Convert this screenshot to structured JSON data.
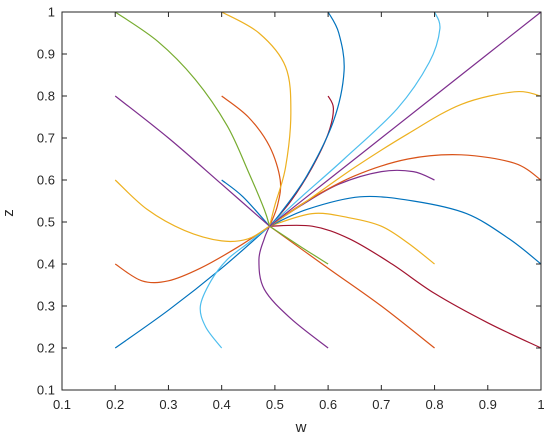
{
  "chart_data": {
    "type": "line",
    "title": "",
    "xlabel": "w",
    "ylabel": "z",
    "xlim": [
      0.1,
      1
    ],
    "ylim": [
      0.1,
      1
    ],
    "x_ticks": [
      "0.1",
      "0.2",
      "0.3",
      "0.4",
      "0.5",
      "0.6",
      "0.7",
      "0.8",
      "0.9",
      "1"
    ],
    "y_ticks": [
      "0.1",
      "0.2",
      "0.3",
      "0.4",
      "0.5",
      "0.6",
      "0.7",
      "0.8",
      "0.9",
      "1"
    ],
    "grid": false,
    "legend": "none",
    "equilibrium": [
      0.49,
      0.49
    ],
    "series": [
      {
        "color": "#0072BD",
        "points": [
          [
            0.2,
            0.2
          ],
          [
            0.3,
            0.29
          ],
          [
            0.4,
            0.39
          ],
          [
            0.49,
            0.49
          ]
        ]
      },
      {
        "color": "#4DBEEE",
        "points": [
          [
            0.4,
            0.2
          ],
          [
            0.37,
            0.25
          ],
          [
            0.36,
            0.3
          ],
          [
            0.38,
            0.36
          ],
          [
            0.41,
            0.41
          ],
          [
            0.45,
            0.45
          ],
          [
            0.49,
            0.49
          ]
        ]
      },
      {
        "color": "#7E2F8E",
        "points": [
          [
            0.6,
            0.2
          ],
          [
            0.53,
            0.27
          ],
          [
            0.48,
            0.34
          ],
          [
            0.47,
            0.41
          ],
          [
            0.48,
            0.46
          ],
          [
            0.49,
            0.49
          ]
        ]
      },
      {
        "color": "#D95319",
        "points": [
          [
            0.8,
            0.2
          ],
          [
            0.7,
            0.3
          ],
          [
            0.6,
            0.39
          ],
          [
            0.49,
            0.49
          ]
        ]
      },
      {
        "color": "#A2142F",
        "points": [
          [
            1.0,
            0.2
          ],
          [
            0.9,
            0.26
          ],
          [
            0.8,
            0.33
          ],
          [
            0.72,
            0.4
          ],
          [
            0.64,
            0.46
          ],
          [
            0.57,
            0.49
          ],
          [
            0.49,
            0.49
          ]
        ]
      },
      {
        "color": "#D95319",
        "points": [
          [
            0.2,
            0.4
          ],
          [
            0.25,
            0.36
          ],
          [
            0.3,
            0.36
          ],
          [
            0.36,
            0.39
          ],
          [
            0.43,
            0.44
          ],
          [
            0.49,
            0.49
          ]
        ]
      },
      {
        "color": "#EDB120",
        "points": [
          [
            0.8,
            0.4
          ],
          [
            0.75,
            0.45
          ],
          [
            0.7,
            0.49
          ],
          [
            0.64,
            0.51
          ],
          [
            0.57,
            0.52
          ],
          [
            0.49,
            0.49
          ]
        ]
      },
      {
        "color": "#0072BD",
        "points": [
          [
            1.0,
            0.4
          ],
          [
            0.94,
            0.46
          ],
          [
            0.86,
            0.52
          ],
          [
            0.76,
            0.55
          ],
          [
            0.66,
            0.56
          ],
          [
            0.56,
            0.53
          ],
          [
            0.49,
            0.49
          ]
        ]
      },
      {
        "color": "#77AC30",
        "points": [
          [
            0.6,
            0.4
          ],
          [
            0.55,
            0.44
          ],
          [
            0.49,
            0.49
          ]
        ]
      },
      {
        "color": "#EDB120",
        "points": [
          [
            0.2,
            0.6
          ],
          [
            0.26,
            0.53
          ],
          [
            0.33,
            0.48
          ],
          [
            0.4,
            0.455
          ],
          [
            0.45,
            0.46
          ],
          [
            0.49,
            0.49
          ]
        ]
      },
      {
        "color": "#0072BD",
        "points": [
          [
            0.4,
            0.6
          ],
          [
            0.44,
            0.56
          ],
          [
            0.49,
            0.49
          ]
        ]
      },
      {
        "color": "#7E2F8E",
        "points": [
          [
            0.8,
            0.6
          ],
          [
            0.76,
            0.62
          ],
          [
            0.7,
            0.62
          ],
          [
            0.62,
            0.59
          ],
          [
            0.55,
            0.54
          ],
          [
            0.49,
            0.49
          ]
        ]
      },
      {
        "color": "#D95319",
        "points": [
          [
            1.0,
            0.6
          ],
          [
            0.95,
            0.64
          ],
          [
            0.85,
            0.66
          ],
          [
            0.75,
            0.65
          ],
          [
            0.65,
            0.61
          ],
          [
            0.56,
            0.55
          ],
          [
            0.49,
            0.49
          ]
        ]
      },
      {
        "color": "#7E2F8E",
        "points": [
          [
            0.2,
            0.8
          ],
          [
            0.3,
            0.7
          ],
          [
            0.4,
            0.59
          ],
          [
            0.49,
            0.49
          ]
        ]
      },
      {
        "color": "#D95319",
        "points": [
          [
            0.4,
            0.8
          ],
          [
            0.45,
            0.75
          ],
          [
            0.49,
            0.68
          ],
          [
            0.51,
            0.6
          ],
          [
            0.505,
            0.54
          ],
          [
            0.49,
            0.49
          ]
        ]
      },
      {
        "color": "#A2142F",
        "points": [
          [
            0.6,
            0.8
          ],
          [
            0.61,
            0.77
          ],
          [
            0.6,
            0.71
          ],
          [
            0.57,
            0.63
          ],
          [
            0.53,
            0.55
          ],
          [
            0.49,
            0.49
          ]
        ]
      },
      {
        "color": "#EDB120",
        "points": [
          [
            1.0,
            0.8
          ],
          [
            0.95,
            0.81
          ],
          [
            0.85,
            0.78
          ],
          [
            0.75,
            0.71
          ],
          [
            0.65,
            0.63
          ],
          [
            0.56,
            0.55
          ],
          [
            0.49,
            0.49
          ]
        ]
      },
      {
        "color": "#77AC30",
        "points": [
          [
            0.2,
            1.0
          ],
          [
            0.28,
            0.93
          ],
          [
            0.35,
            0.84
          ],
          [
            0.41,
            0.73
          ],
          [
            0.45,
            0.62
          ],
          [
            0.48,
            0.53
          ],
          [
            0.49,
            0.49
          ]
        ]
      },
      {
        "color": "#EDB120",
        "points": [
          [
            0.4,
            1.0
          ],
          [
            0.47,
            0.95
          ],
          [
            0.52,
            0.87
          ],
          [
            0.53,
            0.76
          ],
          [
            0.52,
            0.63
          ],
          [
            0.5,
            0.54
          ],
          [
            0.49,
            0.49
          ]
        ]
      },
      {
        "color": "#0072BD",
        "points": [
          [
            0.6,
            1.0
          ],
          [
            0.62,
            0.95
          ],
          [
            0.63,
            0.86
          ],
          [
            0.61,
            0.74
          ],
          [
            0.56,
            0.61
          ],
          [
            0.51,
            0.52
          ],
          [
            0.49,
            0.49
          ]
        ]
      },
      {
        "color": "#4DBEEE",
        "points": [
          [
            0.8,
            1.0
          ],
          [
            0.81,
            0.96
          ],
          [
            0.79,
            0.88
          ],
          [
            0.73,
            0.77
          ],
          [
            0.63,
            0.65
          ],
          [
            0.55,
            0.56
          ],
          [
            0.49,
            0.49
          ]
        ]
      },
      {
        "color": "#7E2F8E",
        "points": [
          [
            1.0,
            1.0
          ],
          [
            0.9,
            0.9
          ],
          [
            0.8,
            0.8
          ],
          [
            0.7,
            0.7
          ],
          [
            0.6,
            0.6
          ],
          [
            0.49,
            0.49
          ]
        ]
      }
    ]
  }
}
